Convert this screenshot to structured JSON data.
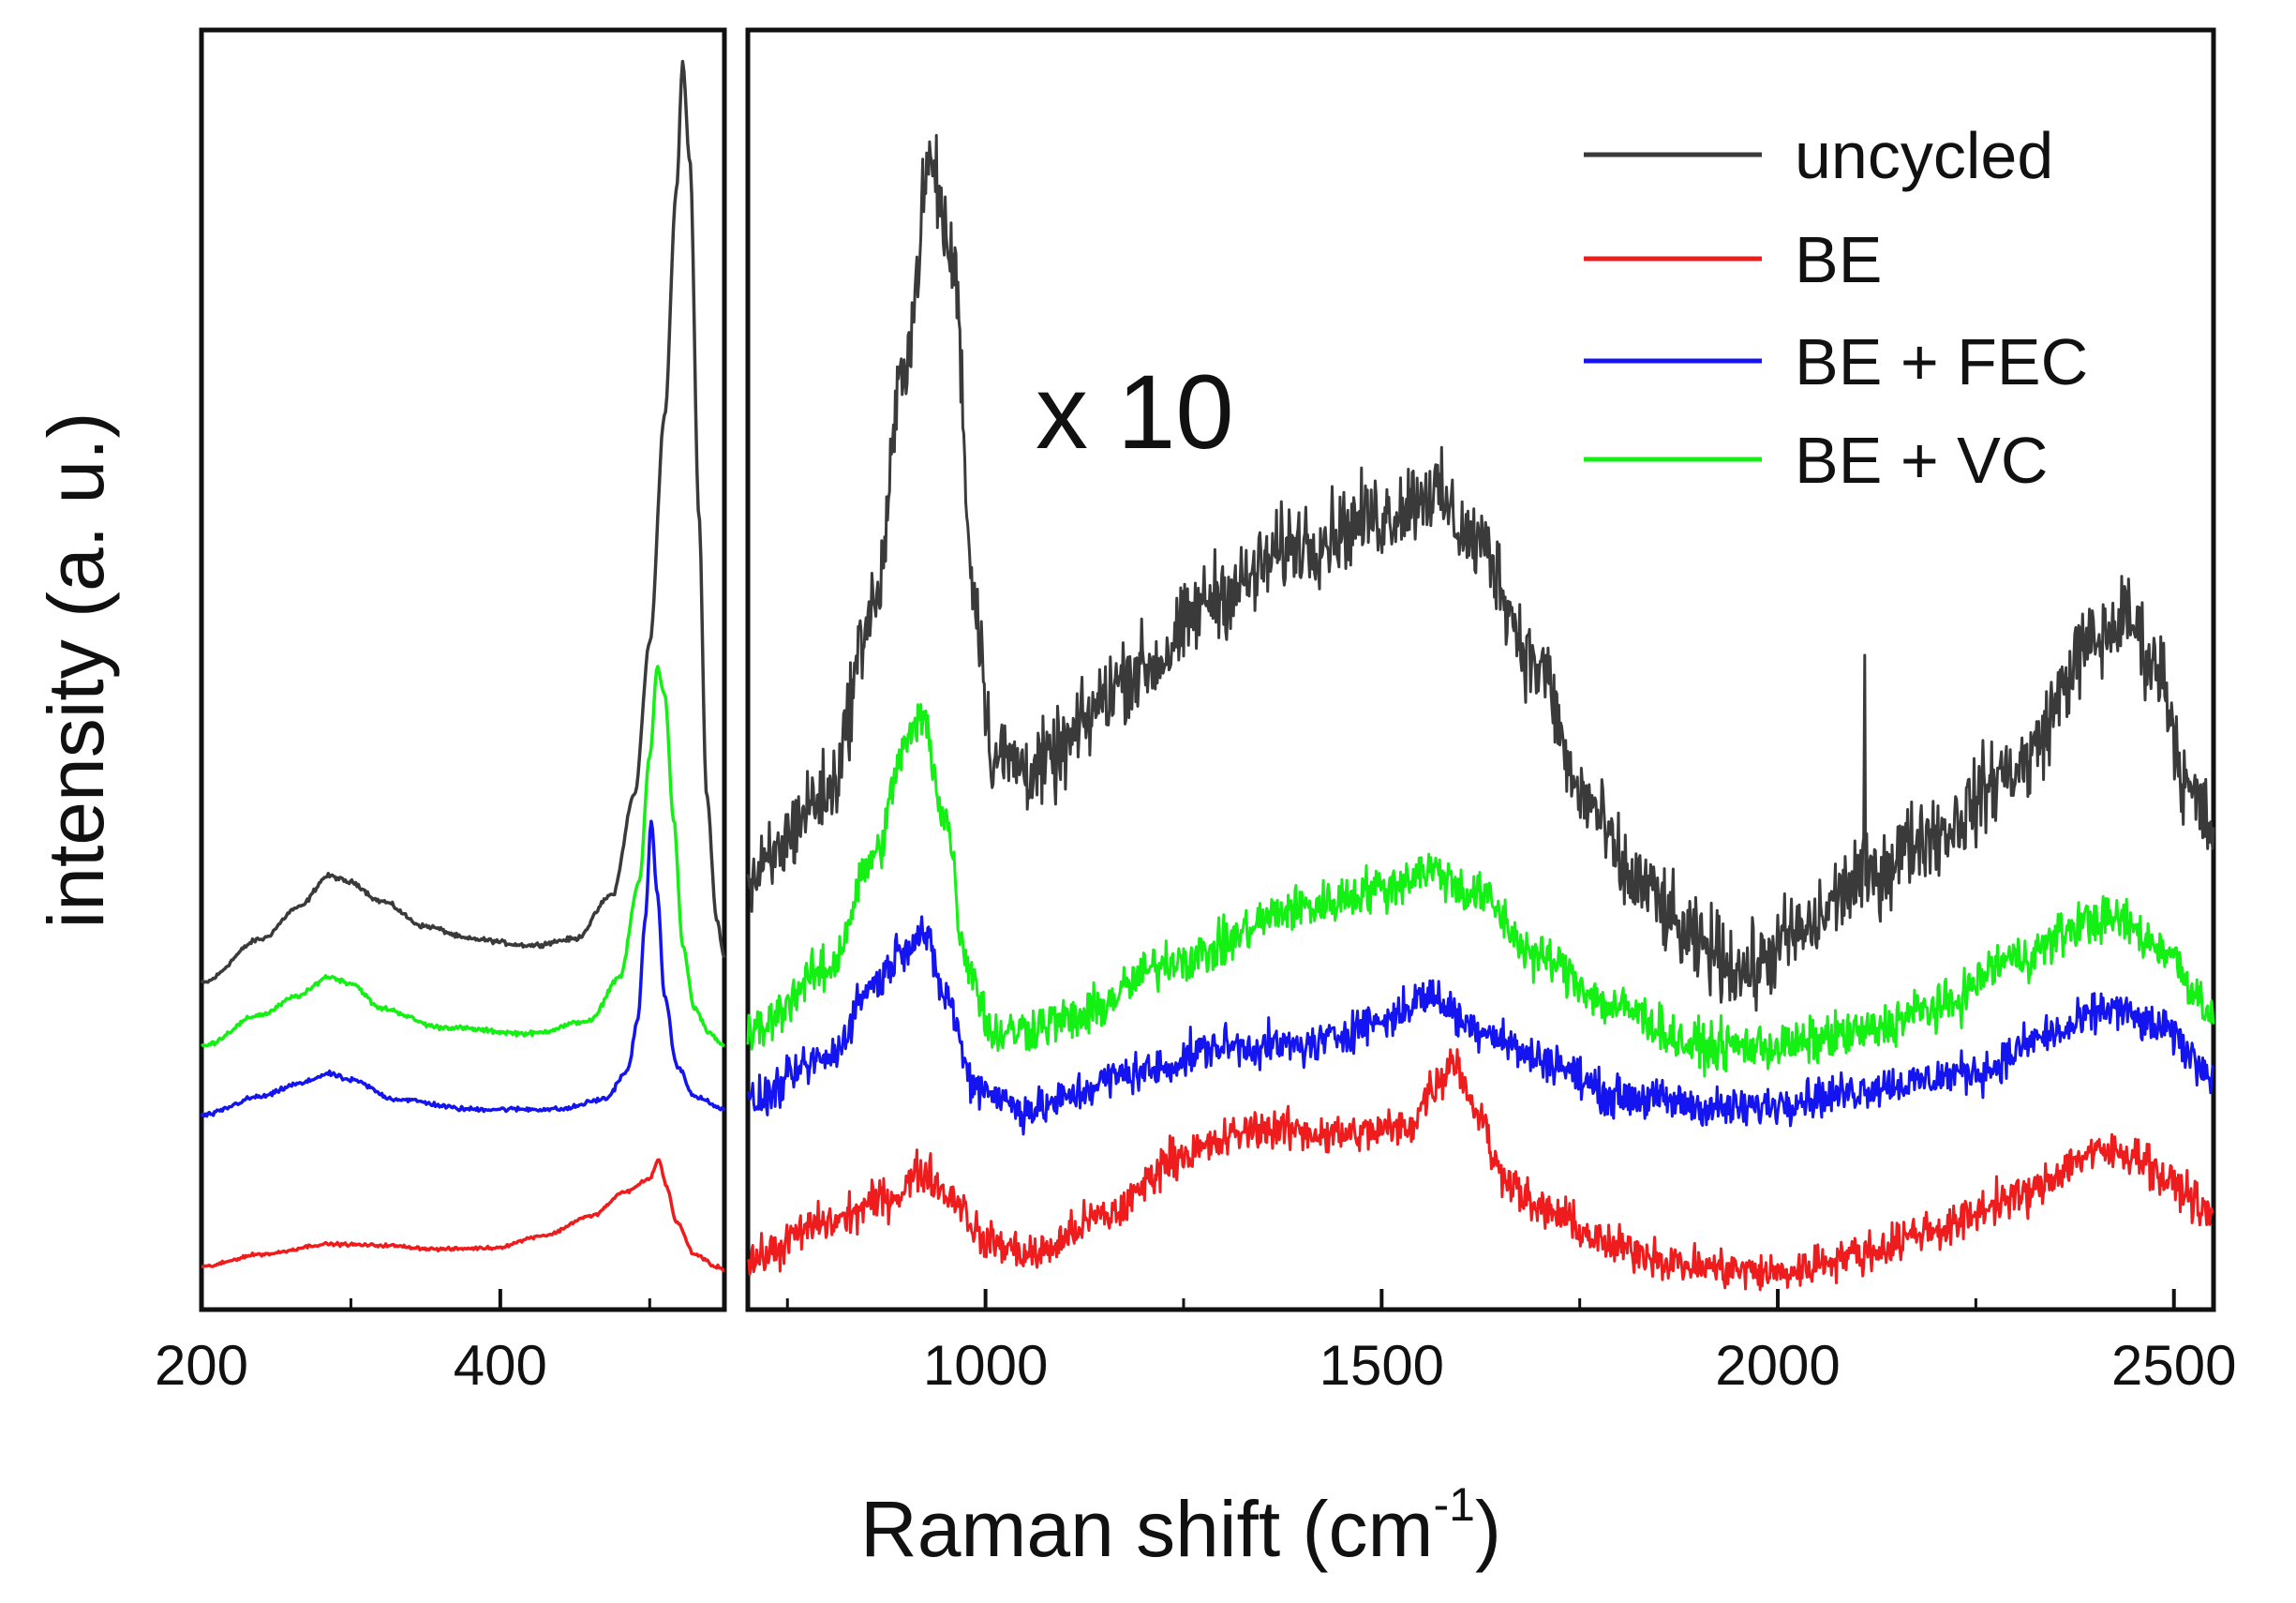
{
  "chart_data": {
    "type": "line",
    "title": "",
    "xlabel": "Raman shift (cm",
    "xlabel_sup": "-1",
    "xlabel_close": ")",
    "ylabel": "intensity (a. u.)",
    "annotation": "x 10",
    "colors": {
      "uncycled": "#3a3a3a",
      "BE": "#ee1c1c",
      "BE + FEC": "#1414f0",
      "BE + VC": "#14f014"
    },
    "legend": [
      "uncycled",
      "BE",
      "BE + FEC",
      "BE + VC"
    ],
    "legend_position": "top-right",
    "grid": false,
    "panels": [
      {
        "id": "low",
        "xlim": [
          200,
          550
        ],
        "ylim": [
          0,
          100
        ],
        "xticks": [
          200,
          400
        ],
        "series": [
          {
            "name": "uncycled",
            "baseline": 25,
            "noise": 0.3,
            "points": [
              [
                200,
                25
              ],
              [
                240,
                28.5
              ],
              [
                265,
                31
              ],
              [
                285,
                33.5
              ],
              [
                300,
                33
              ],
              [
                320,
                31.5
              ],
              [
                350,
                29.5
              ],
              [
                380,
                28.5
              ],
              [
                420,
                28
              ],
              [
                450,
                28.5
              ],
              [
                475,
                32
              ],
              [
                490,
                40
              ],
              [
                500,
                52
              ],
              [
                510,
                70
              ],
              [
                518,
                88
              ],
              [
                522,
                98
              ],
              [
                527,
                90
              ],
              [
                533,
                62
              ],
              [
                538,
                40
              ],
              [
                545,
                30
              ],
              [
                550,
                27
              ]
            ]
          },
          {
            "name": "BE + VC",
            "baseline": 20,
            "noise": 0.3,
            "points": [
              [
                200,
                20
              ],
              [
                240,
                22.5
              ],
              [
                265,
                24
              ],
              [
                285,
                25.5
              ],
              [
                300,
                25
              ],
              [
                320,
                23
              ],
              [
                360,
                21.5
              ],
              [
                420,
                21
              ],
              [
                460,
                22
              ],
              [
                480,
                25.5
              ],
              [
                493,
                33
              ],
              [
                500,
                43
              ],
              [
                505,
                50
              ],
              [
                510,
                48
              ],
              [
                516,
                38
              ],
              [
                522,
                28
              ],
              [
                530,
                23
              ],
              [
                540,
                21
              ],
              [
                550,
                20
              ]
            ]
          },
          {
            "name": "BE + FEC",
            "baseline": 14.5,
            "noise": 0.3,
            "points": [
              [
                200,
                14.5
              ],
              [
                240,
                16
              ],
              [
                265,
                17
              ],
              [
                285,
                17.8
              ],
              [
                300,
                17.3
              ],
              [
                330,
                15.8
              ],
              [
                380,
                15
              ],
              [
                440,
                15
              ],
              [
                470,
                15.8
              ],
              [
                485,
                18
              ],
              [
                492,
                22
              ],
              [
                497,
                30
              ],
              [
                501,
                38
              ],
              [
                505,
                32
              ],
              [
                510,
                24
              ],
              [
                518,
                18.5
              ],
              [
                530,
                16
              ],
              [
                550,
                15
              ]
            ]
          },
          {
            "name": "BE",
            "baseline": 2.5,
            "noise": 0.2,
            "points": [
              [
                200,
                2.5
              ],
              [
                240,
                3.5
              ],
              [
                285,
                4.3
              ],
              [
                320,
                4.2
              ],
              [
                360,
                3.9
              ],
              [
                395,
                4
              ],
              [
                430,
                5
              ],
              [
                460,
                6.5
              ],
              [
                485,
                8.5
              ],
              [
                500,
                9.5
              ],
              [
                506,
                11
              ],
              [
                511,
                9
              ],
              [
                518,
                6
              ],
              [
                530,
                3.5
              ],
              [
                545,
                2.5
              ],
              [
                550,
                2.3
              ]
            ]
          }
        ]
      },
      {
        "id": "high",
        "xlim": [
          700,
          2550
        ],
        "ylim": [
          0,
          100
        ],
        "xticks": [
          1000,
          1500,
          2000,
          2500
        ],
        "minor_xticks": [
          750,
          1250,
          1750,
          2250
        ],
        "series": [
          {
            "name": "uncycled",
            "noise": 5.5,
            "spikes": [
              [
                2110,
                51
              ]
            ],
            "points": [
              [
                700,
                33
              ],
              [
                800,
                40
              ],
              [
                860,
                55
              ],
              [
                900,
                75
              ],
              [
                930,
                90
              ],
              [
                960,
                82
              ],
              [
                985,
                56
              ],
              [
                1010,
                43
              ],
              [
                1060,
                42
              ],
              [
                1200,
                50
              ],
              [
                1300,
                56
              ],
              [
                1400,
                60
              ],
              [
                1500,
                62
              ],
              [
                1560,
                64
              ],
              [
                1620,
                60
              ],
              [
                1700,
                50
              ],
              [
                1750,
                40
              ],
              [
                1820,
                33
              ],
              [
                1900,
                28
              ],
              [
                1960,
                26
              ],
              [
                2030,
                29
              ],
              [
                2100,
                33
              ],
              [
                2200,
                37
              ],
              [
                2300,
                42
              ],
              [
                2400,
                52
              ],
              [
                2440,
                54
              ],
              [
                2480,
                50
              ],
              [
                2520,
                40
              ],
              [
                2550,
                37
              ]
            ]
          },
          {
            "name": "BE + VC",
            "noise": 3.0,
            "points": [
              [
                700,
                21
              ],
              [
                800,
                26
              ],
              [
                860,
                35
              ],
              [
                900,
                44
              ],
              [
                920,
                46
              ],
              [
                950,
                38
              ],
              [
                975,
                27
              ],
              [
                1010,
                21
              ],
              [
                1100,
                22
              ],
              [
                1250,
                27
              ],
              [
                1400,
                31
              ],
              [
                1500,
                32.5
              ],
              [
                1560,
                34
              ],
              [
                1620,
                32
              ],
              [
                1700,
                27
              ],
              [
                1800,
                23
              ],
              [
                1900,
                20
              ],
              [
                2000,
                20
              ],
              [
                2100,
                21
              ],
              [
                2200,
                23
              ],
              [
                2300,
                27
              ],
              [
                2400,
                30
              ],
              [
                2430,
                30
              ],
              [
                2480,
                28
              ],
              [
                2550,
                23
              ]
            ]
          },
          {
            "name": "BE + FEC",
            "noise": 2.6,
            "points": [
              [
                700,
                15.5
              ],
              [
                800,
                19
              ],
              [
                860,
                25
              ],
              [
                900,
                28
              ],
              [
                920,
                29
              ],
              [
                950,
                24
              ],
              [
                985,
                17
              ],
              [
                1050,
                15
              ],
              [
                1200,
                18
              ],
              [
                1300,
                20
              ],
              [
                1400,
                20
              ],
              [
                1500,
                22
              ],
              [
                1560,
                24
              ],
              [
                1620,
                21.5
              ],
              [
                1700,
                19
              ],
              [
                1800,
                16
              ],
              [
                1950,
                15
              ],
              [
                2050,
                16
              ],
              [
                2150,
                17
              ],
              [
                2250,
                18
              ],
              [
                2350,
                21
              ],
              [
                2420,
                23
              ],
              [
                2480,
                21.5
              ],
              [
                2550,
                18
              ]
            ]
          },
          {
            "name": "BE",
            "noise": 2.6,
            "points": [
              [
                700,
                3
              ],
              [
                800,
                6
              ],
              [
                880,
                8
              ],
              [
                920,
                10
              ],
              [
                960,
                8
              ],
              [
                1000,
                4.5
              ],
              [
                1060,
                3.5
              ],
              [
                1150,
                6.5
              ],
              [
                1250,
                11.5
              ],
              [
                1350,
                13.5
              ],
              [
                1450,
                13
              ],
              [
                1530,
                13.5
              ],
              [
                1570,
                17
              ],
              [
                1590,
                19
              ],
              [
                1620,
                15
              ],
              [
                1650,
                10
              ],
              [
                1700,
                7
              ],
              [
                1800,
                4
              ],
              [
                1900,
                2.5
              ],
              [
                2000,
                2
              ],
              [
                2100,
                3.5
              ],
              [
                2200,
                5.5
              ],
              [
                2300,
                8
              ],
              [
                2400,
                11.5
              ],
              [
                2450,
                11.5
              ],
              [
                2500,
                9
              ],
              [
                2550,
                6.5
              ]
            ]
          }
        ]
      }
    ]
  }
}
